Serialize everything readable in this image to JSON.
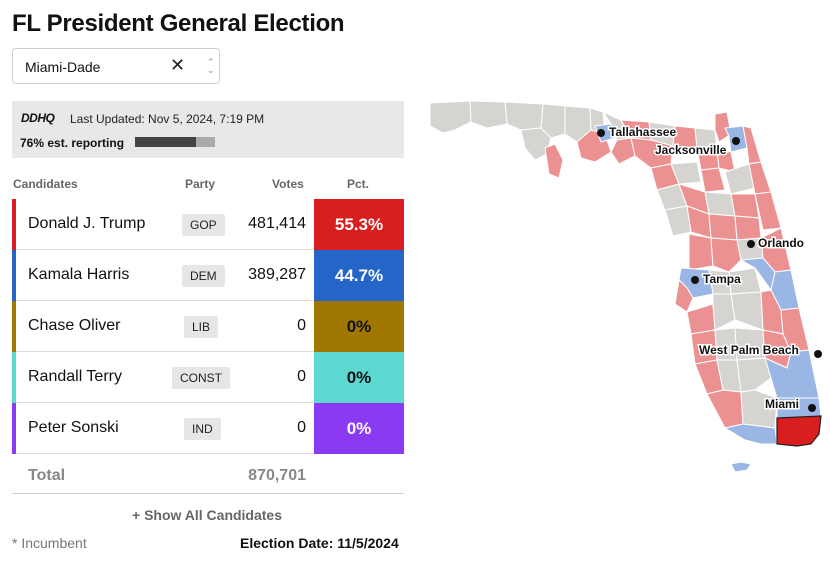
{
  "title": "FL President General Election",
  "county_select": {
    "value": "Miami-Dade"
  },
  "status": {
    "logo": "DDHQ",
    "last_updated": "Last Updated: Nov 5, 2024, 7:19 PM",
    "reporting_label": "76% est. reporting",
    "reporting_fraction": 0.76
  },
  "table": {
    "headers": {
      "candidates": "Candidates",
      "party": "Party",
      "votes": "Votes",
      "pct": "Pct."
    },
    "rows": [
      {
        "name": "Donald J. Trump",
        "party": "GOP",
        "votes": "481,414",
        "pct": "55.3%",
        "color": "#d81e1e"
      },
      {
        "name": "Kamala Harris",
        "party": "DEM",
        "votes": "389,287",
        "pct": "44.7%",
        "color": "#2565c7"
      },
      {
        "name": "Chase Oliver",
        "party": "LIB",
        "votes": "0",
        "pct": "0%",
        "color": "#a07700"
      },
      {
        "name": "Randall Terry",
        "party": "CONST",
        "votes": "0",
        "pct": "0%",
        "color": "#5cd8d0"
      },
      {
        "name": "Peter Sonski",
        "party": "IND",
        "votes": "0",
        "pct": "0%",
        "color": "#8a3af0"
      }
    ],
    "total_label": "Total",
    "total_votes": "870,701"
  },
  "show_all": "+ Show All Candidates",
  "incumbent_note": "* Incumbent",
  "election_date": "Election Date: 11/5/2024",
  "map": {
    "colors": {
      "rep": "#ec9191",
      "dem": "#9ab6e4",
      "none": "#d6d4d1",
      "selected": "#d81e1e"
    },
    "cities": [
      "Tallahassee",
      "Jacksonville",
      "Orlando",
      "Tampa",
      "West Palm Beach",
      "Miami"
    ]
  }
}
